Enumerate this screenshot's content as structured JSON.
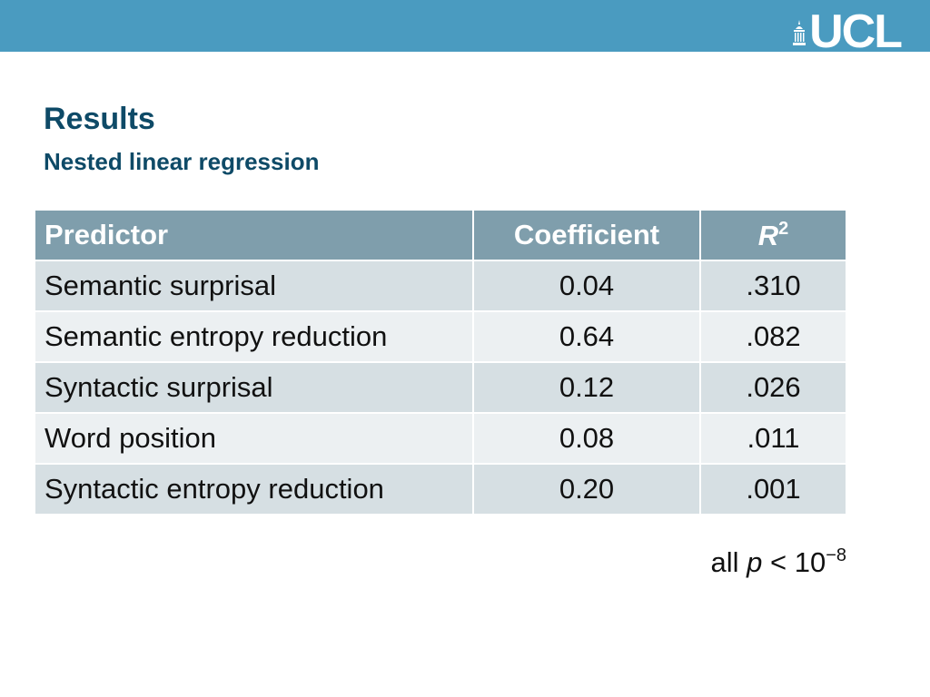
{
  "header": {
    "logo_text": "UCL",
    "bar_color": "#4a9bc0"
  },
  "slide": {
    "title": "Results",
    "subtitle": "Nested linear regression"
  },
  "table": {
    "headers": {
      "predictor": "Predictor",
      "coefficient": "Coefficient",
      "r2_symbol": "R",
      "r2_exponent": "2"
    },
    "rows": [
      {
        "predictor": "Semantic surprisal",
        "coefficient": "0.04",
        "r2": ".310"
      },
      {
        "predictor": "Semantic entropy reduction",
        "coefficient": "0.64",
        "r2": ".082"
      },
      {
        "predictor": "Syntactic surprisal",
        "coefficient": "0.12",
        "r2": ".026"
      },
      {
        "predictor": "Word position",
        "coefficient": "0.08",
        "r2": ".011"
      },
      {
        "predictor": "Syntactic entropy reduction",
        "coefficient": "0.20",
        "r2": ".001"
      }
    ],
    "header_color": "#7f9eac",
    "row_color_odd": "#d6dfe3",
    "row_color_even": "#ecf0f2"
  },
  "footnote": {
    "prefix": "all ",
    "variable": "p",
    "relation": " < 10",
    "exponent": "−8"
  }
}
